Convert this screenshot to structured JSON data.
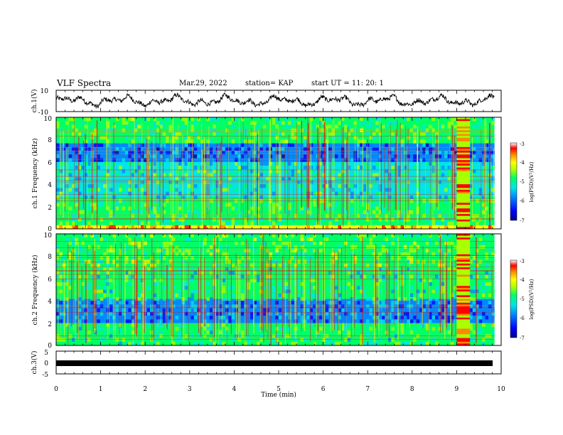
{
  "header": {
    "title": "VLF Spectra",
    "date": "Mar.29, 2022",
    "station": "station= KAP",
    "start": "start  UT  =   11: 20: 1"
  },
  "chart_data": [
    {
      "type": "line",
      "panel": "ch1-waveform",
      "ylabel": "ch.1(V)",
      "ylim": [
        -10,
        10
      ],
      "yticks": [
        "10",
        "-10"
      ],
      "x_range_min": [
        0,
        9.85
      ],
      "description_note": "",
      "series": [
        {
          "color": "#000000"
        }
      ]
    },
    {
      "type": "heatmap",
      "panel": "ch1-spectrogram",
      "ylabel": "ch.1 Frequency  (kHz)",
      "ylim": [
        0,
        10
      ],
      "yticks": [
        "0",
        "2",
        "4",
        "6",
        "8",
        "10"
      ],
      "colorbar_label": "log(PSD)(V²/Hz)",
      "colorbar_ticks": [
        "-3",
        "-4",
        "-5",
        "-6",
        "-7"
      ],
      "colorbar_range": [
        -7,
        -3
      ],
      "bright_band_time_min": [
        9.0,
        9.3
      ]
    },
    {
      "type": "heatmap",
      "panel": "ch2-spectrogram",
      "ylabel": "ch.2 Frequency  (kHz)",
      "ylim": [
        0,
        10
      ],
      "yticks": [
        "0",
        "2",
        "4",
        "6",
        "8",
        "10"
      ],
      "colorbar_label": "log(PSD)(V²/Hz)",
      "colorbar_ticks": [
        "-3",
        "-4",
        "-5",
        "-6",
        "-7"
      ],
      "colorbar_range": [
        -7,
        -3
      ],
      "bright_band_time_min": [
        9.0,
        9.3
      ]
    },
    {
      "type": "line",
      "panel": "ch3-waveform",
      "ylabel": "ch.3(V)",
      "ylim": [
        -5,
        5
      ],
      "yticks": [
        "5",
        "0",
        "-5"
      ],
      "value": 0,
      "series": [
        {
          "color": "#000000"
        }
      ]
    }
  ],
  "xaxis": {
    "label": "Time  (min)",
    "ticks": [
      "0",
      "1",
      "2",
      "3",
      "4",
      "5",
      "6",
      "7",
      "8",
      "9",
      "10"
    ],
    "xlim": [
      0,
      10
    ]
  },
  "colors": {
    "spectrum": [
      "#00008b",
      "#0000ff",
      "#0088ff",
      "#00e5e5",
      "#00ff66",
      "#aaff00",
      "#ffff00",
      "#ff8800",
      "#ff0000",
      "#ffffff"
    ]
  }
}
